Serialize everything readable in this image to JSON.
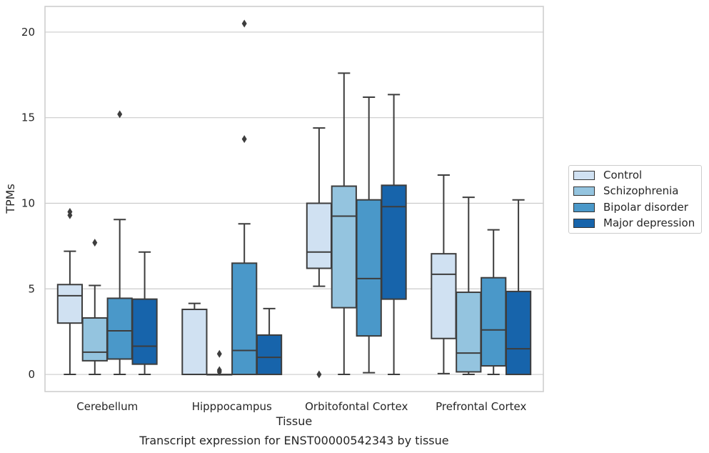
{
  "chart_data": {
    "type": "box",
    "caption": "Transcript expression for ENST00000542343 by tissue",
    "xlabel": "Tissue",
    "ylabel": "TPMs",
    "ylim": [
      -1,
      21.5
    ],
    "yticks": [
      0,
      5,
      10,
      15,
      20
    ],
    "grid": true,
    "legend_position": "right",
    "categories": [
      "Cerebellum",
      "Hipppocampus",
      "Orbitofontal Cortex",
      "Prefrontal Cortex"
    ],
    "series": [
      {
        "name": "Control",
        "color": "#d0e1f2",
        "boxes": [
          {
            "whisker_low": 0,
            "q1": 3.0,
            "median": 4.6,
            "q3": 5.25,
            "whisker_high": 7.2,
            "outliers": [
              9.3,
              9.5
            ]
          },
          {
            "whisker_low": 0,
            "q1": 0,
            "median": 0,
            "q3": 3.8,
            "whisker_high": 4.15,
            "outliers": []
          },
          {
            "whisker_low": 5.15,
            "q1": 6.2,
            "median": 7.15,
            "q3": 10.0,
            "whisker_high": 14.4,
            "outliers": [
              0
            ]
          },
          {
            "whisker_low": 0.05,
            "q1": 2.1,
            "median": 5.85,
            "q3": 7.05,
            "whisker_high": 11.65,
            "outliers": []
          }
        ]
      },
      {
        "name": "Schizophrenia",
        "color": "#94c4df",
        "boxes": [
          {
            "whisker_low": 0,
            "q1": 0.8,
            "median": 1.3,
            "q3": 3.3,
            "whisker_high": 5.2,
            "outliers": [
              7.7
            ]
          },
          {
            "whisker_low": 0,
            "q1": 0,
            "median": 0,
            "q3": 0,
            "whisker_high": 0,
            "outliers": [
              1.2,
              0.25,
              0.15
            ]
          },
          {
            "whisker_low": 0,
            "q1": 3.9,
            "median": 9.25,
            "q3": 11.0,
            "whisker_high": 17.6,
            "outliers": []
          },
          {
            "whisker_low": 0,
            "q1": 0.15,
            "median": 1.25,
            "q3": 4.8,
            "whisker_high": 10.35,
            "outliers": []
          }
        ]
      },
      {
        "name": "Bipolar disorder",
        "color": "#4a98c9",
        "boxes": [
          {
            "whisker_low": 0,
            "q1": 0.9,
            "median": 2.55,
            "q3": 4.45,
            "whisker_high": 9.05,
            "outliers": [
              15.2
            ]
          },
          {
            "whisker_low": 0,
            "q1": 0,
            "median": 1.4,
            "q3": 6.5,
            "whisker_high": 8.8,
            "outliers": [
              20.5,
              13.75
            ]
          },
          {
            "whisker_low": 0.1,
            "q1": 2.25,
            "median": 5.6,
            "q3": 10.2,
            "whisker_high": 16.2,
            "outliers": []
          },
          {
            "whisker_low": 0,
            "q1": 0.5,
            "median": 2.6,
            "q3": 5.65,
            "whisker_high": 8.45,
            "outliers": []
          }
        ]
      },
      {
        "name": "Major depression",
        "color": "#1764ab",
        "boxes": [
          {
            "whisker_low": 0,
            "q1": 0.6,
            "median": 1.65,
            "q3": 4.4,
            "whisker_high": 7.15,
            "outliers": []
          },
          {
            "whisker_low": 0,
            "q1": 0,
            "median": 1.0,
            "q3": 2.3,
            "whisker_high": 3.85,
            "outliers": []
          },
          {
            "whisker_low": 0,
            "q1": 4.4,
            "median": 9.8,
            "q3": 11.05,
            "whisker_high": 16.35,
            "outliers": []
          },
          {
            "whisker_low": 0,
            "q1": 0,
            "median": 1.5,
            "q3": 4.85,
            "whisker_high": 10.2,
            "outliers": []
          }
        ]
      }
    ]
  }
}
